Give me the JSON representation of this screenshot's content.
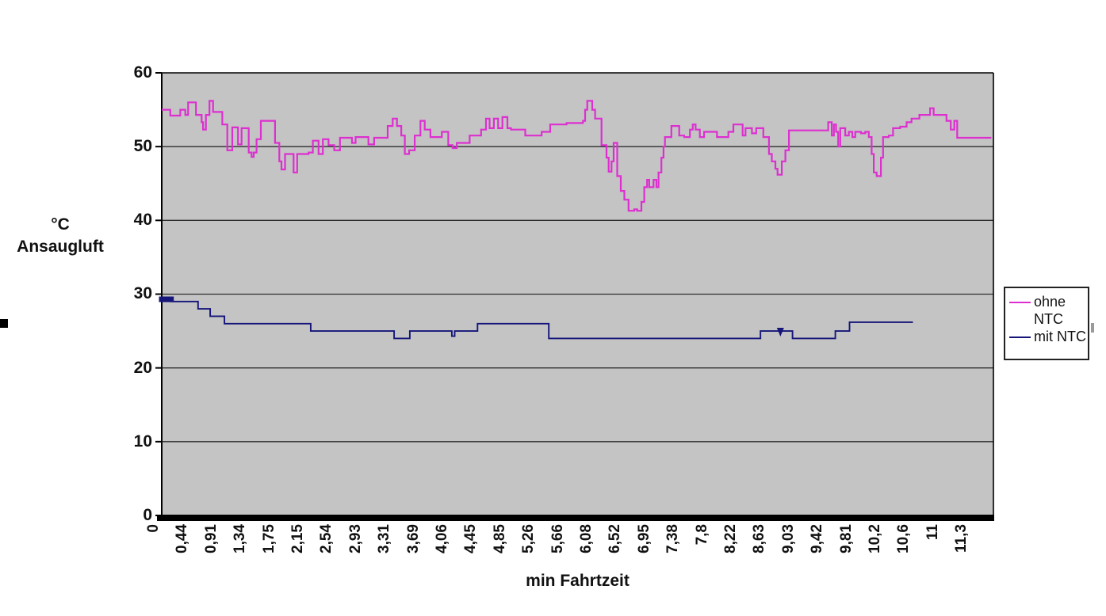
{
  "page": {
    "background": "#ffffff"
  },
  "chart_data": {
    "type": "line",
    "title": "",
    "xlabel": "min Fahrtzeit",
    "ylabel": "°C Ansaugluft",
    "ylabel_lines": [
      "°C",
      "Ansaugluft"
    ],
    "ylim": [
      0,
      60
    ],
    "yticks": [
      60,
      50,
      40,
      30,
      20,
      10,
      0
    ],
    "x_tick_labels": [
      "0",
      "0,44",
      "0,91",
      "1,34",
      "1,75",
      "2,15",
      "2,54",
      "2,93",
      "3,31",
      "3,69",
      "4,06",
      "4,45",
      "4,85",
      "5,26",
      "5,66",
      "6,08",
      "6,52",
      "6,95",
      "7,38",
      "7,8",
      "8,22",
      "8,63",
      "9,03",
      "9,42",
      "9,81",
      "10,2",
      "10,6",
      "11",
      "11,3"
    ],
    "grid": "horizontal",
    "plot_bg": "#c4c4c4",
    "grid_color": "#2e2e2e",
    "axis_color": "#000000",
    "legend_position": "right",
    "series": [
      {
        "name": "ohne NTC",
        "color": "#dd2fd0",
        "style": "step",
        "points": [
          [
            0,
            55
          ],
          [
            0.12,
            54.2
          ],
          [
            0.26,
            55
          ],
          [
            0.33,
            54.3
          ],
          [
            0.37,
            56
          ],
          [
            0.48,
            54.3
          ],
          [
            0.56,
            53.3
          ],
          [
            0.58,
            52.3
          ],
          [
            0.62,
            54.3
          ],
          [
            0.67,
            56.2
          ],
          [
            0.72,
            54.7
          ],
          [
            0.85,
            53
          ],
          [
            0.92,
            49.5
          ],
          [
            0.99,
            52.6
          ],
          [
            1.07,
            50.3
          ],
          [
            1.12,
            52.5
          ],
          [
            1.22,
            49.2
          ],
          [
            1.26,
            48.6
          ],
          [
            1.29,
            49.2
          ],
          [
            1.33,
            51
          ],
          [
            1.39,
            53.5
          ],
          [
            1.59,
            50.5
          ],
          [
            1.65,
            48
          ],
          [
            1.68,
            46.9
          ],
          [
            1.73,
            49
          ],
          [
            1.85,
            46.5
          ],
          [
            1.9,
            49
          ],
          [
            2.06,
            49.2
          ],
          [
            2.12,
            50.8
          ],
          [
            2.2,
            49
          ],
          [
            2.26,
            51
          ],
          [
            2.34,
            50.2
          ],
          [
            2.42,
            49.5
          ],
          [
            2.5,
            51.2
          ],
          [
            2.67,
            50.5
          ],
          [
            2.72,
            51.3
          ],
          [
            2.9,
            50.3
          ],
          [
            2.98,
            51.2
          ],
          [
            3.17,
            52.8
          ],
          [
            3.24,
            53.8
          ],
          [
            3.3,
            52.8
          ],
          [
            3.36,
            51.5
          ],
          [
            3.41,
            49
          ],
          [
            3.47,
            49.5
          ],
          [
            3.55,
            51.5
          ],
          [
            3.63,
            53.5
          ],
          [
            3.69,
            52.3
          ],
          [
            3.77,
            51.3
          ],
          [
            3.93,
            52
          ],
          [
            4.02,
            50.2
          ],
          [
            4.08,
            49.8
          ],
          [
            4.14,
            50.5
          ],
          [
            4.32,
            51.5
          ],
          [
            4.48,
            52.3
          ],
          [
            4.55,
            53.8
          ],
          [
            4.6,
            52.5
          ],
          [
            4.66,
            53.8
          ],
          [
            4.72,
            52.5
          ],
          [
            4.78,
            54
          ],
          [
            4.85,
            52.5
          ],
          [
            4.9,
            52.3
          ],
          [
            5.1,
            51.5
          ],
          [
            5.33,
            52
          ],
          [
            5.45,
            53
          ],
          [
            5.68,
            53.2
          ],
          [
            5.91,
            53.5
          ],
          [
            5.94,
            55
          ],
          [
            5.97,
            56.2
          ],
          [
            6.04,
            55
          ],
          [
            6.08,
            53.8
          ],
          [
            6.17,
            50.2
          ],
          [
            6.24,
            48.5
          ],
          [
            6.27,
            46.6
          ],
          [
            6.31,
            48
          ],
          [
            6.34,
            50.5
          ],
          [
            6.39,
            46
          ],
          [
            6.44,
            44
          ],
          [
            6.49,
            42.8
          ],
          [
            6.55,
            41.3
          ],
          [
            6.63,
            41.5
          ],
          [
            6.67,
            41.3
          ],
          [
            6.73,
            42.5
          ],
          [
            6.77,
            44.5
          ],
          [
            6.81,
            45.5
          ],
          [
            6.84,
            44.5
          ],
          [
            6.9,
            45.5
          ],
          [
            6.94,
            44.5
          ],
          [
            6.97,
            46.5
          ],
          [
            7.01,
            48.5
          ],
          [
            7.04,
            50
          ],
          [
            7.06,
            51.3
          ],
          [
            7.15,
            52.8
          ],
          [
            7.26,
            51.5
          ],
          [
            7.33,
            51.3
          ],
          [
            7.41,
            52.3
          ],
          [
            7.45,
            53
          ],
          [
            7.49,
            52.3
          ],
          [
            7.55,
            51.3
          ],
          [
            7.61,
            52
          ],
          [
            7.73,
            52
          ],
          [
            7.79,
            51.3
          ],
          [
            7.95,
            52
          ],
          [
            8.02,
            53
          ],
          [
            8.15,
            51.5
          ],
          [
            8.19,
            52.5
          ],
          [
            8.28,
            51.8
          ],
          [
            8.34,
            52.5
          ],
          [
            8.44,
            51.3
          ],
          [
            8.52,
            49
          ],
          [
            8.56,
            48
          ],
          [
            8.61,
            47
          ],
          [
            8.64,
            46.2
          ],
          [
            8.7,
            48
          ],
          [
            8.75,
            49.5
          ],
          [
            8.8,
            52.2
          ],
          [
            9.33,
            52.2
          ],
          [
            9.35,
            53.3
          ],
          [
            9.4,
            51.5
          ],
          [
            9.43,
            53
          ],
          [
            9.46,
            52
          ],
          [
            9.49,
            50
          ],
          [
            9.52,
            52.5
          ],
          [
            9.59,
            51.5
          ],
          [
            9.64,
            52
          ],
          [
            9.69,
            51.3
          ],
          [
            9.73,
            52
          ],
          [
            9.81,
            51.8
          ],
          [
            9.87,
            52
          ],
          [
            9.92,
            51.3
          ],
          [
            9.96,
            49
          ],
          [
            9.99,
            46.5
          ],
          [
            10.03,
            46
          ],
          [
            10.09,
            48.5
          ],
          [
            10.12,
            51.3
          ],
          [
            10.2,
            51.5
          ],
          [
            10.26,
            52.5
          ],
          [
            10.36,
            52.7
          ],
          [
            10.45,
            53.3
          ],
          [
            10.52,
            53.8
          ],
          [
            10.63,
            54.3
          ],
          [
            10.78,
            55.2
          ],
          [
            10.83,
            54.3
          ],
          [
            11.01,
            53.5
          ],
          [
            11.07,
            52.3
          ],
          [
            11.12,
            53.5
          ],
          [
            11.16,
            51.2
          ],
          [
            11.64,
            51.2
          ]
        ]
      },
      {
        "name": "mit NTC",
        "color": "#15157a",
        "style": "step",
        "points": [
          [
            0,
            29.3
          ],
          [
            0.13,
            29
          ],
          [
            0.51,
            28
          ],
          [
            0.68,
            27
          ],
          [
            0.88,
            26
          ],
          [
            2.09,
            25
          ],
          [
            3.26,
            24
          ],
          [
            3.48,
            25
          ],
          [
            4.07,
            24.3
          ],
          [
            4.11,
            25
          ],
          [
            4.43,
            26
          ],
          [
            5.43,
            24
          ],
          [
            8.4,
            25
          ],
          [
            8.85,
            24
          ],
          [
            9.45,
            25
          ],
          [
            9.65,
            26.2
          ],
          [
            10.54,
            26.2
          ]
        ],
        "markers": {
          "squares_t": [
            0,
            0.05,
            0.09,
            0.13
          ],
          "square_value": 29.3,
          "triangle_down": [
            8.68,
            24.9
          ]
        }
      }
    ]
  }
}
